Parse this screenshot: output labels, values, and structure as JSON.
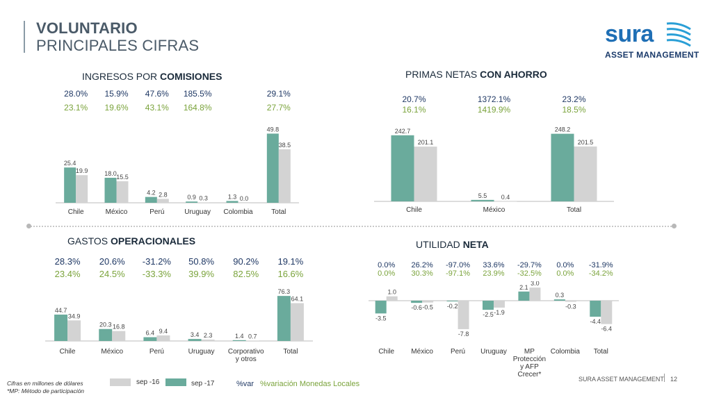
{
  "header": {
    "title": "VOLUNTARIO",
    "subtitle": "PRINCIPALES CIFRAS"
  },
  "logo": {
    "name": "sura",
    "sub": "ASSET MANAGEMENT"
  },
  "colors": {
    "sep16": "#d3d3d3",
    "sep17": "#6aab9c",
    "pct_var": "#1f3864",
    "pct_local": "#7aa33b"
  },
  "footer": {
    "note1": "Cifras en millones de dólares",
    "note2": "*MP: Método de participación",
    "legend_sep16": "sep -16",
    "legend_sep17": "sep -17",
    "legend_var": "%var",
    "legend_local": "%variación Monedas Locales",
    "brand": "SURA ASSET MANAGEMENT",
    "page": "12"
  },
  "chart_data": [
    {
      "id": "comisiones",
      "type": "bar",
      "title_pre": "INGRESOS POR ",
      "title_bold": "COMISIONES",
      "categories": [
        "Chile",
        "México",
        "Perú",
        "Uruguay",
        "Colombia",
        "Total"
      ],
      "series": [
        {
          "name": "sep -17",
          "values": [
            25.4,
            18.0,
            4.2,
            0.9,
            1.3,
            49.8
          ]
        },
        {
          "name": "sep -16",
          "values": [
            19.9,
            15.5,
            2.8,
            0.3,
            0.0,
            38.5
          ]
        }
      ],
      "labels17": [
        "25.4",
        "18.0",
        "4.2",
        "0.9",
        "1.3",
        "49.8"
      ],
      "labels16": [
        "19.9",
        "15.5",
        "2.8",
        "0.3",
        "0.0",
        "38.5"
      ],
      "var": [
        "28.0%",
        "15.9%",
        "47.6%",
        "185.5%",
        "",
        "29.1%"
      ],
      "local": [
        "23.1%",
        "19.6%",
        "43.1%",
        "164.8%",
        "",
        "27.7%"
      ],
      "ylim": [
        0,
        52
      ]
    },
    {
      "id": "primas",
      "type": "bar",
      "title_pre": "PRIMAS NETAS ",
      "title_bold": "CON AHORRO",
      "categories": [
        "Chile",
        "México",
        "Total"
      ],
      "series": [
        {
          "name": "sep -17",
          "values": [
            242.7,
            5.5,
            248.2
          ]
        },
        {
          "name": "sep -16",
          "values": [
            201.1,
            0.4,
            201.5
          ]
        }
      ],
      "labels17": [
        "242.7",
        "5.5",
        "248.2"
      ],
      "labels16": [
        "201.1",
        "0.4",
        "201.5"
      ],
      "var": [
        "20.7%",
        "1372.1%",
        "23.2%"
      ],
      "local": [
        "16.1%",
        "1419.9%",
        "18.5%"
      ],
      "ylim": [
        0,
        260
      ]
    },
    {
      "id": "gastos",
      "type": "bar",
      "title_pre": "GASTOS ",
      "title_bold": "OPERACIONALES",
      "categories": [
        "Chile",
        "México",
        "Perú",
        "Uruguay",
        "Corporativo\ny otros",
        "Total"
      ],
      "series": [
        {
          "name": "sep -17",
          "values": [
            44.7,
            20.3,
            6.4,
            3.4,
            1.4,
            76.3
          ]
        },
        {
          "name": "sep -16",
          "values": [
            34.9,
            16.8,
            9.4,
            2.3,
            0.7,
            64.1
          ]
        }
      ],
      "labels17": [
        "44.7",
        "20.3",
        "6.4",
        "3.4",
        "1.4",
        "76.3"
      ],
      "labels16": [
        "34.9",
        "16.8",
        "9.4",
        "2.3",
        "0.7",
        "64.1"
      ],
      "var": [
        "28.3%",
        "20.6%",
        "-31.2%",
        "50.8%",
        "90.2%",
        "19.1%"
      ],
      "local": [
        "23.4%",
        "24.5%",
        "-33.3%",
        "39.9%",
        "82.5%",
        "16.6%"
      ],
      "ylim": [
        0,
        80
      ]
    },
    {
      "id": "utilidad",
      "type": "bar",
      "title_pre": "UTILIDAD ",
      "title_bold": "NETA",
      "categories": [
        "Chile",
        "México",
        "Perú",
        "Uruguay",
        "MP\nProtección\ny AFP\nCrecer*",
        "Colombia",
        "Total"
      ],
      "series": [
        {
          "name": "sep -17",
          "values": [
            -3.5,
            -0.6,
            -0.2,
            -2.5,
            2.1,
            0.3,
            -4.4
          ]
        },
        {
          "name": "sep -16",
          "values": [
            1.0,
            -0.5,
            -7.8,
            -1.9,
            3.0,
            -0.3,
            -6.4
          ]
        }
      ],
      "labels17": [
        "-3.5",
        "-0.6",
        "-0.2",
        "-2.5",
        "2.1",
        "0.3",
        "-4.4"
      ],
      "labels16": [
        "1.0",
        "-0.5",
        "-7.8",
        "-1.9",
        "3.0",
        "-0.3",
        "-6.4"
      ],
      "var": [
        "0.0%",
        "26.2%",
        "-97.0%",
        "33.6%",
        "-29.7%",
        "0.0%",
        "-31.9%"
      ],
      "local": [
        "0.0%",
        "30.3%",
        "-97.1%",
        "23.9%",
        "-32.5%",
        "0.0%",
        "-34.2%"
      ],
      "ylim": [
        -8,
        3.5
      ]
    }
  ]
}
